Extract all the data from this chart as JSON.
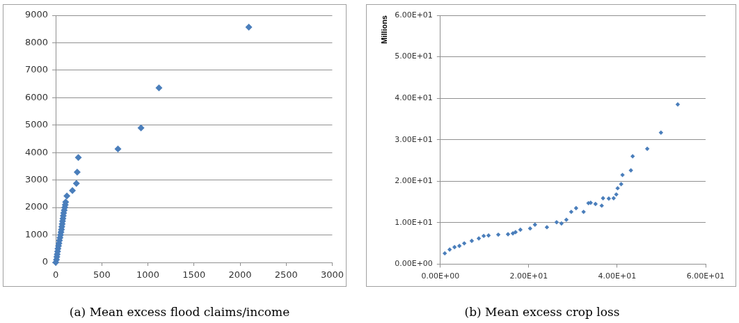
{
  "chart_data": [
    {
      "type": "scatter",
      "title": "(a) Mean excess flood claims/income",
      "marker": "diamond",
      "grid": "y",
      "xlim": [
        0,
        3000
      ],
      "xticks": [
        0,
        500,
        1000,
        1500,
        2000,
        2500,
        3000
      ],
      "ylim": [
        0,
        9000
      ],
      "yticks": [
        0,
        1000,
        2000,
        3000,
        4000,
        5000,
        6000,
        7000,
        8000,
        9000
      ],
      "series": [
        {
          "color": "#4a7ebb",
          "x": [
            0,
            8,
            12,
            16,
            20,
            24,
            30,
            35,
            40,
            46,
            52,
            57,
            62,
            66,
            70,
            74,
            78,
            82,
            86,
            92,
            98,
            103,
            108,
            121,
            181,
            224,
            233,
            245,
            675,
            925,
            1120,
            2095
          ],
          "values": [
            0,
            100,
            200,
            300,
            400,
            500,
            600,
            700,
            800,
            900,
            1000,
            1100,
            1200,
            1300,
            1400,
            1500,
            1600,
            1700,
            1800,
            1900,
            2000,
            2100,
            2200,
            2420,
            2620,
            2880,
            3290,
            3820,
            4130,
            4900,
            6360,
            8570
          ]
        }
      ]
    },
    {
      "type": "scatter",
      "title": "(b) Mean excess crop loss",
      "ylabel": "Millions",
      "marker": "diamond",
      "grid": "y",
      "xlim": [
        0,
        60
      ],
      "xticks": [
        {
          "value": 0,
          "label": "0.00E+00"
        },
        {
          "value": 20,
          "label": "2.00E+01"
        },
        {
          "value": 40,
          "label": "4.00E+01"
        },
        {
          "value": 60,
          "label": "6.00E+01"
        }
      ],
      "ylim": [
        0,
        60
      ],
      "yticks": [
        {
          "value": 0,
          "label": "0.00E+00"
        },
        {
          "value": 10,
          "label": "1.00E+01"
        },
        {
          "value": 20,
          "label": "2.00E+01"
        },
        {
          "value": 30,
          "label": "3.00E+01"
        },
        {
          "value": 40,
          "label": "4.00E+01"
        },
        {
          "value": 50,
          "label": "5.00E+01"
        },
        {
          "value": 60,
          "label": "6.00E+01"
        }
      ],
      "series": [
        {
          "color": "#4a7ebb",
          "x": [
            1.0,
            2.1,
            3.2,
            4.3,
            5.4,
            7.1,
            8.7,
            9.8,
            10.9,
            13.1,
            15.3,
            16.4,
            17,
            18.1,
            20.3,
            21.4,
            24.1,
            26.3,
            27.4,
            28.5,
            29.6,
            30.7,
            32.4,
            33.5,
            34,
            35.1,
            36.5,
            36.8,
            38.1,
            39.2,
            39.8,
            40.1,
            40.9,
            41.2,
            43.1,
            43.5,
            46.8,
            49.9,
            53.7
          ],
          "values": [
            2.6,
            3.5,
            4.1,
            4.4,
            5.0,
            5.6,
            6.2,
            6.8,
            6.9,
            7.1,
            7.2,
            7.4,
            7.7,
            8.3,
            8.6,
            9.5,
            8.9,
            10.1,
            9.8,
            10.7,
            12.6,
            13.5,
            12.6,
            14.7,
            14.8,
            14.5,
            14.1,
            15.9,
            15.8,
            15.9,
            16.8,
            18.3,
            19.3,
            21.5,
            22.6,
            26.0,
            27.8,
            31.7,
            38.5
          ]
        }
      ]
    }
  ]
}
